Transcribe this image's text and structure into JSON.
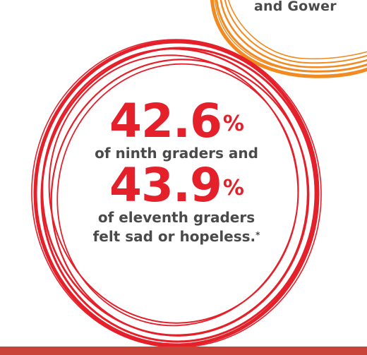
{
  "orange_badge": {
    "text": "and Gower"
  },
  "stats": {
    "ninth_value": "42.6",
    "percent_sign": "%",
    "ninth_label": "of ninth graders and",
    "eleventh_value": "43.9",
    "eleventh_label_line1": "of eleventh graders",
    "eleventh_label_line2": "felt sad or hopeless.",
    "footnote_marker": "*"
  },
  "colors": {
    "red": "#e4202a",
    "orange": "#f28a22",
    "text": "#4a4a4a",
    "bar": "#c94438"
  }
}
